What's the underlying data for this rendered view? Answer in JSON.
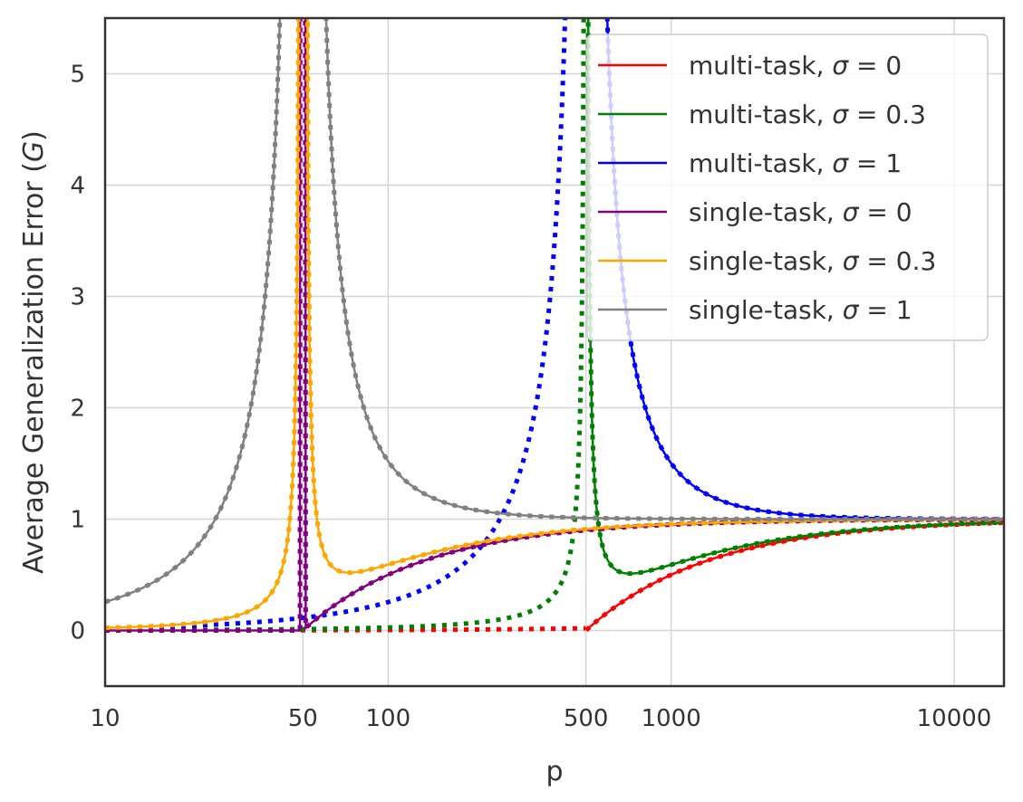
{
  "chart_data": {
    "type": "line",
    "xlabel": "p",
    "ylabel_main": "Average Generalization Error (",
    "ylabel_symbol": "G",
    "ylabel_close": ")",
    "xscale": "log",
    "xlim": [
      10,
      15000
    ],
    "ylim": [
      -0.5,
      5.5
    ],
    "xticks": [
      10,
      50,
      100,
      500,
      1000,
      10000
    ],
    "xtick_labels": [
      "10",
      "50",
      "100",
      "500",
      "1000",
      "10000"
    ],
    "yticks": [
      0,
      1,
      2,
      3,
      4,
      5
    ],
    "ytick_labels": [
      "0",
      "1",
      "2",
      "3",
      "4",
      "5"
    ],
    "grid": true,
    "legend_position": "top-right",
    "series": [
      {
        "name_prefix": "multi-task, ",
        "name_symbol": "σ",
        "name_suffix": " = 0",
        "color": "#ff0000",
        "sigma": 0,
        "n": 500,
        "kind": "multi"
      },
      {
        "name_prefix": "multi-task, ",
        "name_symbol": "σ",
        "name_suffix": " = 0.3",
        "color": "#008000",
        "sigma": 0.3,
        "n": 500,
        "kind": "multi"
      },
      {
        "name_prefix": "multi-task, ",
        "name_symbol": "σ",
        "name_suffix": " = 1",
        "color": "#0000ff",
        "sigma": 1,
        "n": 500,
        "kind": "multi"
      },
      {
        "name_prefix": "single-task, ",
        "name_symbol": "σ",
        "name_suffix": " = 0",
        "color": "#800080",
        "sigma": 0,
        "n": 50,
        "kind": "single"
      },
      {
        "name_prefix": "single-task, ",
        "name_symbol": "σ",
        "name_suffix": " = 0.3",
        "color": "#ffa500",
        "sigma": 0.3,
        "n": 50,
        "kind": "single"
      },
      {
        "name_prefix": "single-task, ",
        "name_symbol": "σ",
        "name_suffix": " = 1",
        "color": "#808080",
        "sigma": 1,
        "n": 50,
        "kind": "single"
      }
    ]
  }
}
